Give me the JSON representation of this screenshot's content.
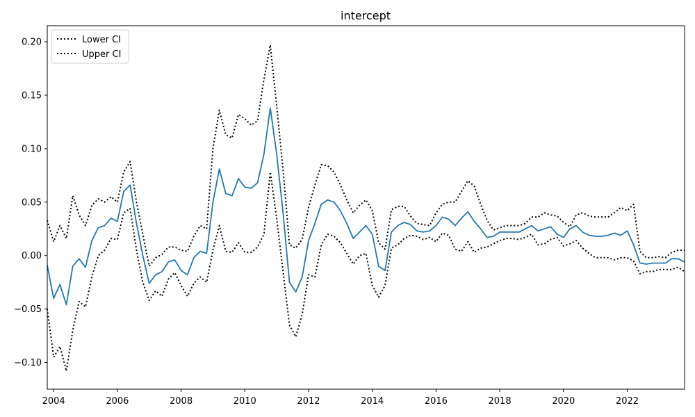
{
  "chart_data": {
    "type": "line",
    "title": "intercept",
    "xlabel": "",
    "ylabel": "",
    "xlim": [
      2003.8,
      2023.8
    ],
    "ylim": [
      -0.125,
      0.215
    ],
    "xticks": [
      2004,
      2006,
      2008,
      2010,
      2012,
      2014,
      2016,
      2018,
      2020,
      2022
    ],
    "xtick_labels": [
      "2004",
      "2006",
      "2008",
      "2010",
      "2012",
      "2014",
      "2016",
      "2018",
      "2020",
      "2022"
    ],
    "yticks": [
      -0.1,
      -0.05,
      0.0,
      0.05,
      0.1,
      0.15,
      0.2
    ],
    "ytick_labels": [
      "−0.10",
      "−0.05",
      "0.00",
      "0.05",
      "0.10",
      "0.15",
      "0.20"
    ],
    "grid": false,
    "legend_position": "top-left",
    "legend": [
      "Lower CI",
      "Upper CI"
    ],
    "x": [
      2003.8,
      2004.0,
      2004.2,
      2004.4,
      2004.6,
      2004.8,
      2005.0,
      2005.2,
      2005.4,
      2005.6,
      2005.8,
      2006.0,
      2006.2,
      2006.4,
      2006.6,
      2006.8,
      2007.0,
      2007.2,
      2007.4,
      2007.6,
      2007.8,
      2008.0,
      2008.2,
      2008.4,
      2008.6,
      2008.8,
      2009.0,
      2009.2,
      2009.4,
      2009.6,
      2009.8,
      2010.0,
      2010.2,
      2010.4,
      2010.6,
      2010.8,
      2011.0,
      2011.2,
      2011.4,
      2011.6,
      2011.8,
      2012.0,
      2012.2,
      2012.4,
      2012.6,
      2012.8,
      2013.0,
      2013.2,
      2013.4,
      2013.6,
      2013.8,
      2014.0,
      2014.2,
      2014.4,
      2014.6,
      2014.8,
      2015.0,
      2015.2,
      2015.4,
      2015.6,
      2015.8,
      2016.0,
      2016.2,
      2016.4,
      2016.6,
      2016.8,
      2017.0,
      2017.2,
      2017.4,
      2017.6,
      2017.8,
      2018.0,
      2018.2,
      2018.4,
      2018.6,
      2018.8,
      2019.0,
      2019.2,
      2019.4,
      2019.6,
      2019.8,
      2020.0,
      2020.2,
      2020.4,
      2020.6,
      2020.8,
      2021.0,
      2021.2,
      2021.4,
      2021.6,
      2021.8,
      2022.0,
      2022.2,
      2022.4,
      2022.6,
      2022.8,
      2023.0,
      2023.2,
      2023.4,
      2023.6,
      2023.8
    ],
    "series": [
      {
        "name": "",
        "color": "#1f77b4",
        "style": "solid",
        "values": [
          -0.009,
          -0.04,
          -0.027,
          -0.046,
          -0.01,
          -0.003,
          -0.011,
          0.014,
          0.026,
          0.028,
          0.035,
          0.032,
          0.06,
          0.066,
          0.03,
          0.0,
          -0.026,
          -0.018,
          -0.015,
          -0.006,
          -0.004,
          -0.014,
          -0.018,
          -0.002,
          0.004,
          0.002,
          0.05,
          0.081,
          0.058,
          0.056,
          0.072,
          0.064,
          0.063,
          0.068,
          0.095,
          0.138,
          0.095,
          0.04,
          -0.025,
          -0.034,
          -0.02,
          0.014,
          0.03,
          0.048,
          0.052,
          0.05,
          0.042,
          0.03,
          0.016,
          0.022,
          0.028,
          0.02,
          -0.01,
          -0.014,
          0.022,
          0.028,
          0.031,
          0.029,
          0.023,
          0.022,
          0.023,
          0.028,
          0.036,
          0.034,
          0.028,
          0.035,
          0.041,
          0.032,
          0.025,
          0.017,
          0.018,
          0.022,
          0.022,
          0.022,
          0.022,
          0.025,
          0.028,
          0.023,
          0.025,
          0.027,
          0.02,
          0.017,
          0.025,
          0.028,
          0.022,
          0.019,
          0.018,
          0.018,
          0.019,
          0.021,
          0.019,
          0.023,
          0.01,
          -0.007,
          -0.008,
          -0.007,
          -0.007,
          -0.007,
          -0.003,
          -0.003,
          -0.006
        ]
      },
      {
        "name": "Lower CI",
        "color": "#000000",
        "style": "dotted",
        "values": [
          -0.05,
          -0.095,
          -0.085,
          -0.108,
          -0.07,
          -0.043,
          -0.048,
          -0.02,
          0.0,
          0.005,
          0.016,
          0.015,
          0.04,
          0.044,
          0.005,
          -0.025,
          -0.042,
          -0.033,
          -0.038,
          -0.022,
          -0.016,
          -0.028,
          -0.038,
          -0.026,
          -0.02,
          -0.025,
          0.005,
          0.028,
          0.004,
          0.003,
          0.012,
          0.003,
          0.003,
          0.008,
          0.02,
          0.078,
          0.035,
          -0.015,
          -0.065,
          -0.076,
          -0.055,
          -0.018,
          -0.02,
          0.01,
          0.02,
          0.018,
          0.012,
          0.002,
          -0.008,
          0.0,
          0.002,
          -0.028,
          -0.039,
          -0.028,
          0.007,
          0.01,
          0.016,
          0.019,
          0.018,
          0.015,
          0.017,
          0.013,
          0.021,
          0.019,
          0.006,
          0.004,
          0.013,
          0.003,
          0.007,
          0.008,
          0.011,
          0.014,
          0.016,
          0.016,
          0.015,
          0.017,
          0.02,
          0.01,
          0.011,
          0.015,
          0.017,
          0.009,
          0.011,
          0.014,
          0.007,
          0.002,
          -0.002,
          -0.002,
          -0.002,
          -0.004,
          -0.002,
          -0.002,
          -0.005,
          -0.017,
          -0.015,
          -0.015,
          -0.013,
          -0.013,
          -0.013,
          -0.011,
          -0.015
        ]
      },
      {
        "name": "Upper CI",
        "color": "#000000",
        "style": "dotted",
        "values": [
          0.033,
          0.013,
          0.028,
          0.016,
          0.056,
          0.038,
          0.028,
          0.047,
          0.053,
          0.05,
          0.055,
          0.05,
          0.078,
          0.088,
          0.05,
          0.02,
          -0.01,
          -0.002,
          0.001,
          0.008,
          0.008,
          0.005,
          0.004,
          0.018,
          0.028,
          0.025,
          0.1,
          0.136,
          0.113,
          0.11,
          0.132,
          0.128,
          0.122,
          0.126,
          0.165,
          0.197,
          0.14,
          0.08,
          0.01,
          0.007,
          0.015,
          0.045,
          0.066,
          0.085,
          0.084,
          0.078,
          0.066,
          0.052,
          0.04,
          0.047,
          0.052,
          0.042,
          0.012,
          0.006,
          0.043,
          0.046,
          0.046,
          0.037,
          0.03,
          0.029,
          0.028,
          0.04,
          0.048,
          0.05,
          0.05,
          0.06,
          0.07,
          0.065,
          0.048,
          0.033,
          0.024,
          0.026,
          0.028,
          0.028,
          0.028,
          0.03,
          0.036,
          0.036,
          0.04,
          0.038,
          0.037,
          0.031,
          0.027,
          0.038,
          0.04,
          0.037,
          0.036,
          0.036,
          0.036,
          0.04,
          0.045,
          0.042,
          0.048,
          0.004,
          -0.002,
          -0.002,
          -0.001,
          -0.002,
          0.003,
          0.005,
          0.005
        ]
      }
    ]
  }
}
